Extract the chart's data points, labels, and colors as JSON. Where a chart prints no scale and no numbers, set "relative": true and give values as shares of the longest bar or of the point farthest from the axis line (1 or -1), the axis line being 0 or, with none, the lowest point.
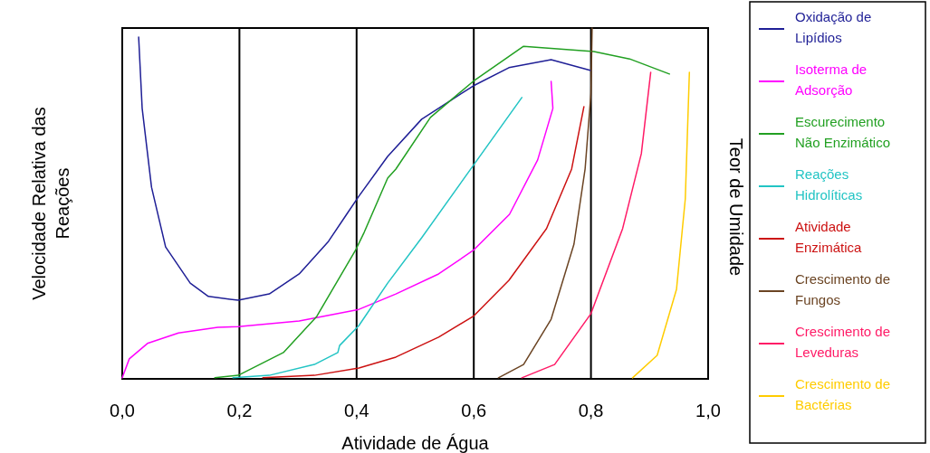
{
  "chart_data": {
    "type": "line",
    "relative": true,
    "xlabel": "Atividade de Água",
    "ylabel": "Velocidade Relativa das Reações",
    "y2label": "Teor de Umidade",
    "xlim": [
      0,
      1
    ],
    "xticks": [
      {
        "value": 0,
        "label": "0,0"
      },
      {
        "value": 0.2,
        "label": "0,2"
      },
      {
        "value": 0.4,
        "label": "0,4"
      },
      {
        "value": 0.6,
        "label": "0,6"
      },
      {
        "value": 0.8,
        "label": "0,8"
      },
      {
        "value": 1,
        "label": "1,0"
      }
    ],
    "grid": "x",
    "legend": "right",
    "marker": "none",
    "line_style": "solid",
    "series": [
      {
        "name": "Oxidação de Lipídios",
        "color": "#1f1f96",
        "x": [
          0.028,
          0.034,
          0.05,
          0.074,
          0.116,
          0.147,
          0.198,
          0.251,
          0.302,
          0.352,
          0.383,
          0.404,
          0.453,
          0.511,
          0.599,
          0.66,
          0.732,
          0.8
        ],
        "values": [
          0.974,
          0.771,
          0.546,
          0.376,
          0.273,
          0.235,
          0.224,
          0.242,
          0.299,
          0.392,
          0.469,
          0.521,
          0.634,
          0.74,
          0.835,
          0.887,
          0.91,
          0.879
        ]
      },
      {
        "name": "Isoterma de Adsorção",
        "color": "#ff00ff",
        "x": [
          0,
          0.012,
          0.043,
          0.096,
          0.163,
          0.198,
          0.302,
          0.404,
          0.467,
          0.54,
          0.599,
          0.661,
          0.709,
          0.735,
          0.732
        ],
        "values": [
          0.003,
          0.057,
          0.101,
          0.131,
          0.147,
          0.149,
          0.165,
          0.198,
          0.242,
          0.299,
          0.366,
          0.469,
          0.624,
          0.771,
          0.848
        ]
      },
      {
        "name": "Escurecimento Não Enzimático",
        "color": "#22a022",
        "x": [
          0.158,
          0.198,
          0.275,
          0.332,
          0.398,
          0.413,
          0.453,
          0.467,
          0.526,
          0.599,
          0.685,
          0.805,
          0.866,
          0.934
        ],
        "values": [
          0.003,
          0.01,
          0.075,
          0.178,
          0.366,
          0.418,
          0.572,
          0.598,
          0.745,
          0.848,
          0.948,
          0.933,
          0.912,
          0.869
        ]
      },
      {
        "name": "Reações Hidrolíticas",
        "color": "#22c4c4",
        "x": [
          0.189,
          0.251,
          0.328,
          0.368,
          0.371,
          0.404,
          0.453,
          0.511,
          0.682
        ],
        "values": [
          0.003,
          0.01,
          0.041,
          0.075,
          0.095,
          0.152,
          0.273,
          0.402,
          0.802
        ]
      },
      {
        "name": "Atividade Enzimática",
        "color": "#cc1111",
        "x": [
          0.24,
          0.328,
          0.404,
          0.467,
          0.54,
          0.599,
          0.66,
          0.724,
          0.767,
          0.788
        ],
        "values": [
          0.003,
          0.01,
          0.031,
          0.062,
          0.119,
          0.178,
          0.281,
          0.428,
          0.598,
          0.776
        ]
      },
      {
        "name": "Crescimento de Fungos",
        "color": "#6b4423",
        "x": [
          0.642,
          0.685,
          0.732,
          0.771,
          0.79,
          0.8,
          0.802
        ],
        "values": [
          0.003,
          0.041,
          0.17,
          0.384,
          0.598,
          0.814,
          1
        ]
      },
      {
        "name": "Crescimento de Leveduras",
        "color": "#ff1a66",
        "x": [
          0.682,
          0.738,
          0.8,
          0.854,
          0.886,
          0.902
        ],
        "values": [
          0.003,
          0.041,
          0.186,
          0.428,
          0.642,
          0.874
        ]
      },
      {
        "name": "Crescimento de Bactérias",
        "color": "#ffcc00",
        "x": [
          0.871,
          0.913,
          0.946,
          0.961,
          0.968
        ],
        "values": [
          0.003,
          0.067,
          0.255,
          0.513,
          0.874
        ]
      }
    ]
  }
}
